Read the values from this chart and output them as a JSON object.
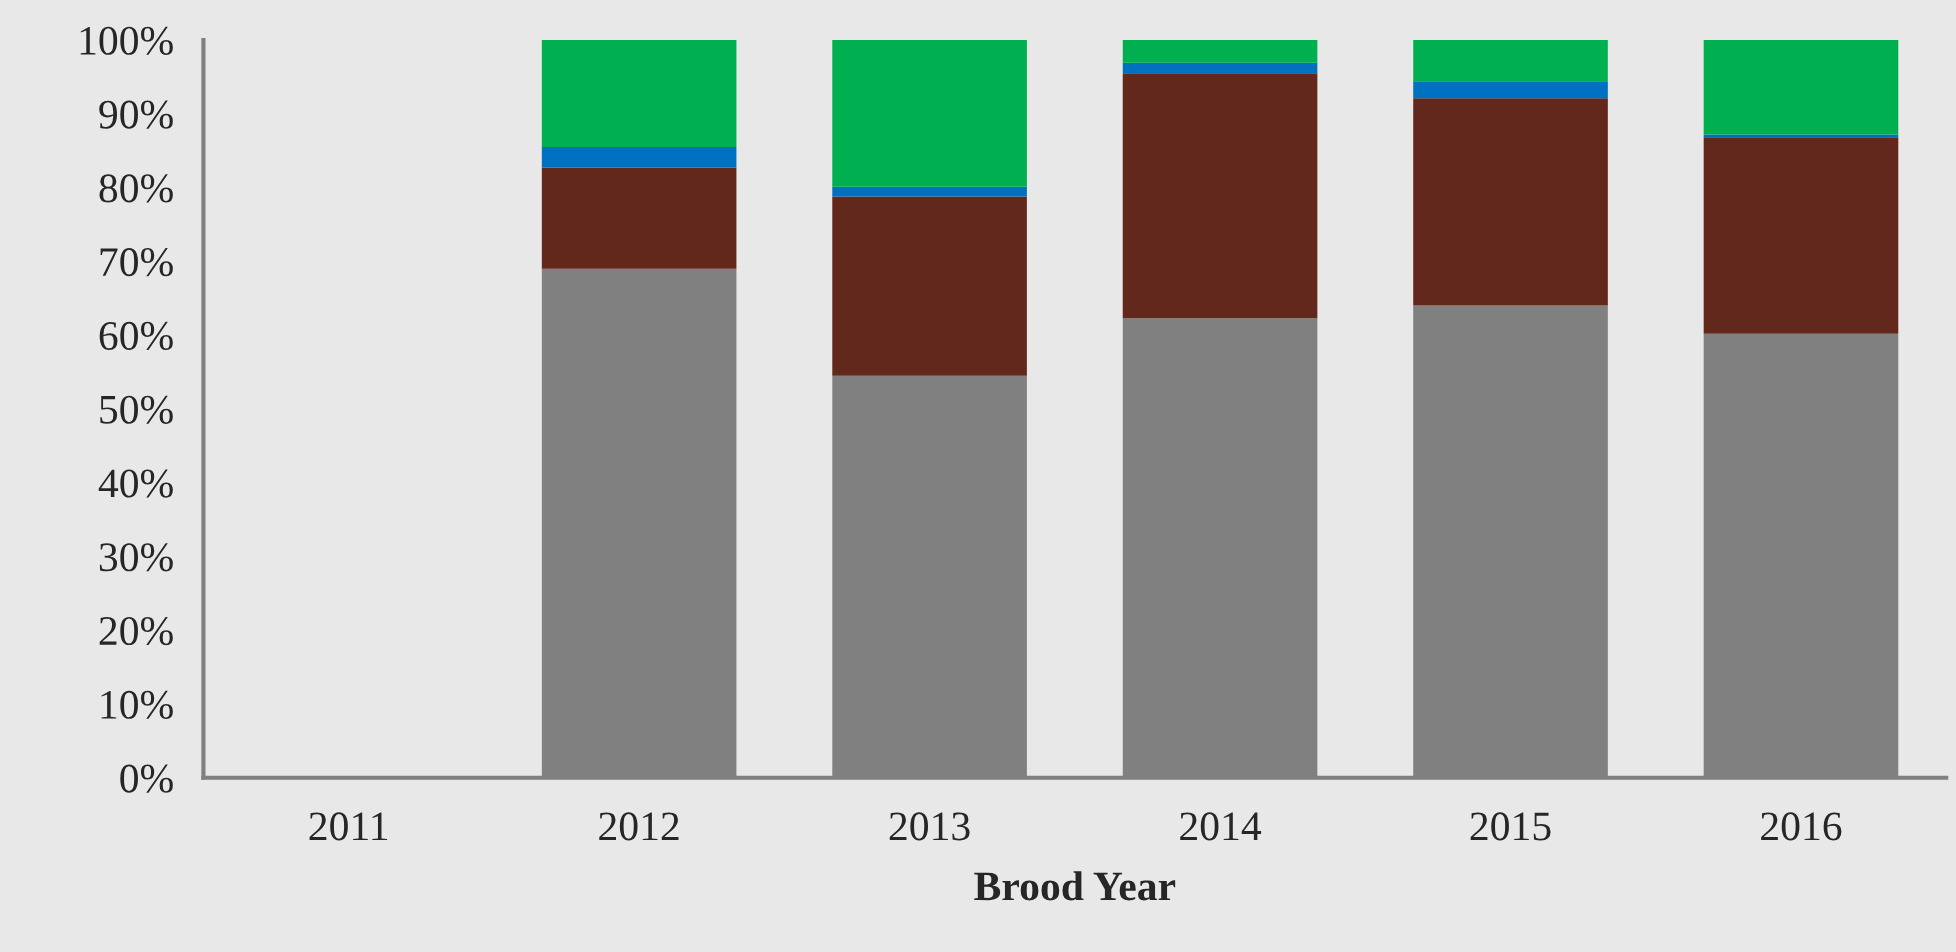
{
  "chart_data": {
    "type": "bar",
    "stacked": true,
    "xlabel": "Brood Year",
    "categories": [
      "2011",
      "2012",
      "2013",
      "2014",
      "2015",
      "2016"
    ],
    "series": [
      {
        "color": "#808080",
        "values": [
          null,
          69.0,
          54.5,
          62.3,
          64.0,
          60.2
        ]
      },
      {
        "color": "#63281c",
        "values": [
          null,
          13.7,
          24.3,
          33.2,
          28.1,
          26.6
        ]
      },
      {
        "color": "#0070c0",
        "values": [
          null,
          2.8,
          1.3,
          1.4,
          2.3,
          0.4
        ]
      },
      {
        "color": "#00b050",
        "values": [
          null,
          14.5,
          19.9,
          3.1,
          5.6,
          12.8
        ]
      }
    ],
    "ylim": [
      0,
      100
    ],
    "yticks": [
      {
        "value": 0,
        "label": "0%"
      },
      {
        "value": 10,
        "label": "10%"
      },
      {
        "value": 20,
        "label": "20%"
      },
      {
        "value": 30,
        "label": "30%"
      },
      {
        "value": 40,
        "label": "40%"
      },
      {
        "value": 50,
        "label": "50%"
      },
      {
        "value": 60,
        "label": "60%"
      },
      {
        "value": 70,
        "label": "70%"
      },
      {
        "value": 80,
        "label": "80%"
      },
      {
        "value": 90,
        "label": "90%"
      },
      {
        "value": 100,
        "label": "100%"
      }
    ],
    "grid": false
  }
}
